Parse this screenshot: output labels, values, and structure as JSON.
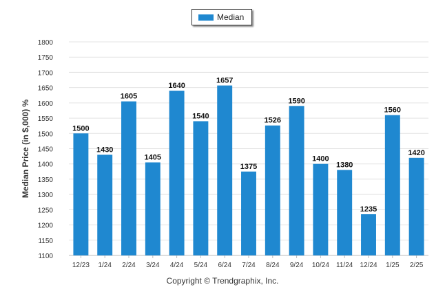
{
  "chart_data": {
    "type": "bar",
    "categories": [
      "12/23",
      "1/24",
      "2/24",
      "3/24",
      "4/24",
      "5/24",
      "6/24",
      "7/24",
      "8/24",
      "9/24",
      "10/24",
      "11/24",
      "12/24",
      "1/25",
      "2/25"
    ],
    "series": [
      {
        "name": "Median",
        "values": [
          1500,
          1430,
          1605,
          1405,
          1640,
          1540,
          1657,
          1375,
          1526,
          1590,
          1400,
          1380,
          1235,
          1560,
          1420
        ]
      }
    ],
    "ylabel": "Median Price (in $,000) %",
    "xlabel": "",
    "ylim": [
      1100,
      1800
    ],
    "yticks": [
      1100,
      1150,
      1200,
      1250,
      1300,
      1350,
      1400,
      1450,
      1500,
      1550,
      1600,
      1650,
      1700,
      1750,
      1800
    ],
    "grid": true,
    "legend_position": "top-center",
    "data_labels": true
  },
  "colors": {
    "bar": "#1f88d0",
    "grid": "#e3e3e3",
    "text": "#222222"
  },
  "footer": {
    "copyright": "Copyright © Trendgraphix, Inc."
  }
}
